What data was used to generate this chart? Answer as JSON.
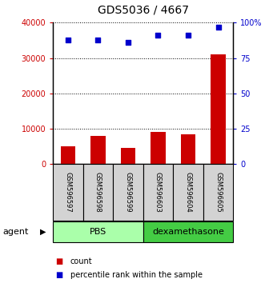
{
  "title": "GDS5036 / 4667",
  "samples": [
    "GSM596597",
    "GSM596598",
    "GSM596599",
    "GSM596603",
    "GSM596604",
    "GSM596605"
  ],
  "counts": [
    5000,
    8000,
    4500,
    9000,
    8500,
    31000
  ],
  "percentiles": [
    88,
    88,
    86,
    91,
    91,
    97
  ],
  "ylim_left": [
    0,
    40000
  ],
  "ylim_right": [
    0,
    100
  ],
  "yticks_left": [
    0,
    10000,
    20000,
    30000,
    40000
  ],
  "yticks_right": [
    0,
    25,
    50,
    75,
    100
  ],
  "ytick_labels_left": [
    "0",
    "10000",
    "20000",
    "30000",
    "40000"
  ],
  "ytick_labels_right": [
    "0",
    "25",
    "50",
    "75",
    "100%"
  ],
  "bar_color": "#cc0000",
  "scatter_color": "#0000cc",
  "groups": [
    {
      "label": "PBS",
      "start": 0,
      "end": 3,
      "color": "#aaffaa"
    },
    {
      "label": "dexamethasone",
      "start": 3,
      "end": 6,
      "color": "#44cc44"
    }
  ],
  "agent_label": "agent",
  "legend_count": "count",
  "legend_pct": "percentile rank within the sample",
  "bar_width": 0.5,
  "tick_label_color_left": "#cc0000",
  "tick_label_color_right": "#0000cc",
  "title_fontsize": 10,
  "axis_fontsize": 7,
  "sample_fontsize": 6,
  "group_fontsize": 8,
  "legend_fontsize": 7
}
